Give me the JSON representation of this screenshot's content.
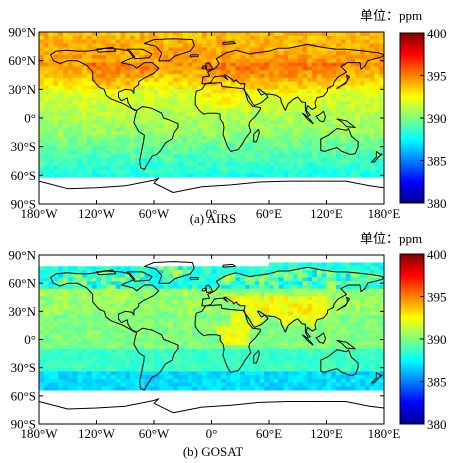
{
  "figure": {
    "panels": [
      {
        "id": "a",
        "caption": "(a) AIRS",
        "unit": "单位：ppm",
        "colorbar_ticks": [
          "400",
          "395",
          "390",
          "385",
          "380"
        ],
        "lat_ticks": [
          "90°N",
          "60°N",
          "30°N",
          "0°",
          "30°S",
          "60°S",
          "90°S"
        ],
        "lon_ticks": [
          "180°W",
          "120°W",
          "60°W",
          "0°",
          "60°E",
          "120°E",
          "180°E"
        ]
      },
      {
        "id": "b",
        "caption": "(b) GOSAT",
        "unit": "单位：ppm",
        "colorbar_ticks": [
          "400",
          "395",
          "390",
          "385",
          "380"
        ],
        "lat_ticks": [
          "90°N",
          "60°N",
          "30°N",
          "0°",
          "30°S",
          "60°S",
          "90°S"
        ],
        "lon_ticks": [
          "180°W",
          "120°W",
          "60°W",
          "0°",
          "60°E",
          "120°E",
          "180°E"
        ]
      }
    ],
    "colormap": [
      "#00008f",
      "#0000ff",
      "#0080ff",
      "#00ffff",
      "#80ff80",
      "#ffff00",
      "#ff8000",
      "#ff0000",
      "#800000"
    ],
    "colorbar_range": [
      380,
      400
    ]
  }
}
